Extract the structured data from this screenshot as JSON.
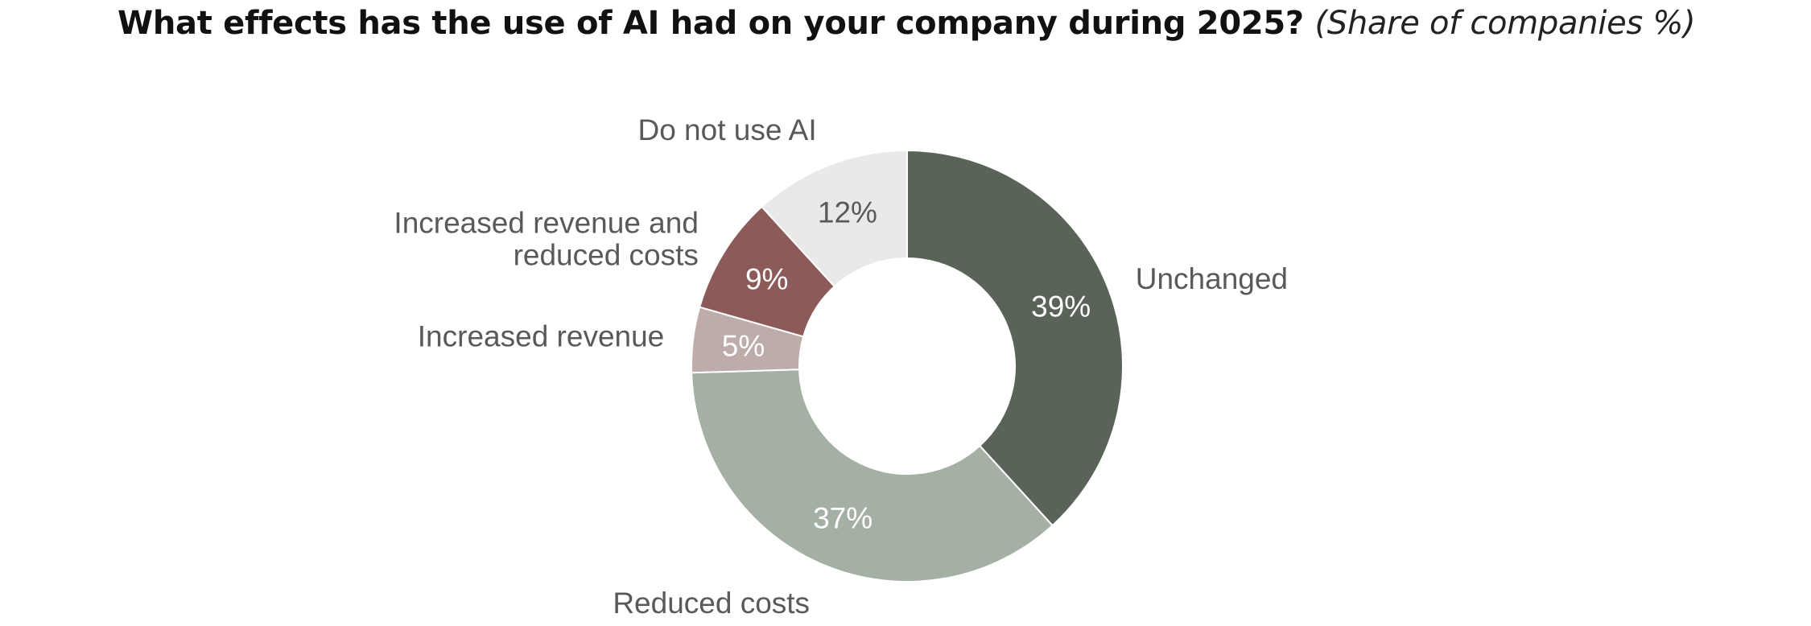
{
  "chart_data": {
    "type": "pie",
    "variant": "donut",
    "title": "What effects has the use of AI had on your company during 2025?",
    "subtitle": "(Share of companies %)",
    "slices": [
      {
        "name": "Unchanged",
        "value": 39,
        "display": "39%",
        "color": "#596358",
        "value_color": "#ffffff"
      },
      {
        "name": "Reduced costs",
        "value": 37,
        "display": "37%",
        "color": "#a4b0a4",
        "value_color": "#ffffff"
      },
      {
        "name": "Increased revenue",
        "value": 5,
        "display": "5%",
        "color": "#bdacaa",
        "value_color": "#ffffff"
      },
      {
        "name": "Increased revenue and reduced costs",
        "lines": [
          "Increased revenue and",
          "reduced costs"
        ],
        "value": 9,
        "display": "9%",
        "color": "#8c5a58",
        "value_color": "#ffffff"
      },
      {
        "name": "Do not use AI",
        "value": 12,
        "display": "12%",
        "color": "#ebe8e8",
        "value_color": "#595959"
      }
    ],
    "start_angle": "12 o'clock",
    "direction": "clockwise",
    "legend": "none"
  }
}
